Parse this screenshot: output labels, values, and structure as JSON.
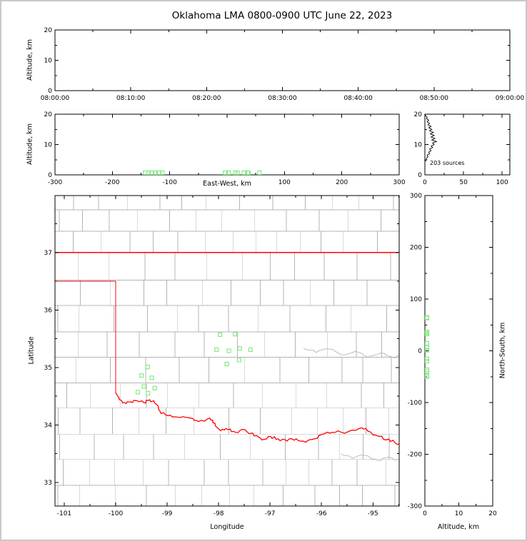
{
  "title": "Oklahoma LMA 0800-0900 UTC June 22, 2023",
  "labels": {
    "altitude_km": "Altitude, km",
    "east_west_km": "East-West, km",
    "latitude": "Latitude",
    "longitude": "Longitude",
    "north_south_km": "North-South, km"
  },
  "colors": {
    "frame": "#000000",
    "text": "#000000",
    "county_line": "#b4b4b4",
    "river_line": "#b4b4b4",
    "state_border": "#ff0000",
    "station_marker": "#7ce87c",
    "histogram_trace": "#000000",
    "figure_border": "#c9c9c9",
    "background": "#ffffff"
  },
  "network_center_lonlat": [
    -98.0,
    35.0
  ],
  "chart_data": [
    {
      "id": "time_height",
      "type": "scatter",
      "panel": "top",
      "ylabel": "Altitude, km",
      "ylim": [
        0,
        20
      ],
      "y_ticks": [
        0,
        10,
        20
      ],
      "y_tick_labels": [
        "0",
        "10",
        "20"
      ],
      "x_tick_labels": [
        "08:00:00",
        "08:10:00",
        "08:20:00",
        "08:30:00",
        "08:40:00",
        "08:50:00",
        "09:00:00"
      ],
      "points": []
    },
    {
      "id": "east_west_height",
      "type": "scatter",
      "panel": "middle-left",
      "xlabel": "East-West, km",
      "xlim": [
        -300,
        300
      ],
      "x_ticks": [
        -300,
        -200,
        -100,
        0,
        100,
        200,
        300
      ],
      "x_tick_labels": [
        "-300",
        "-200",
        "-100",
        "",
        "100",
        "200",
        "300"
      ],
      "ylabel": "Altitude, km",
      "ylim": [
        0,
        20
      ],
      "y_ticks": [
        0,
        10,
        20
      ],
      "y_tick_labels": [
        "0",
        "10",
        "20"
      ],
      "points": []
    },
    {
      "id": "altitude_histogram",
      "type": "line",
      "panel": "middle-right",
      "xlim": [
        0,
        110
      ],
      "x_ticks": [
        0,
        50,
        100
      ],
      "x_tick_labels": [
        "0",
        "50",
        "100"
      ],
      "ylim": [
        0,
        20
      ],
      "y_ticks": [
        0,
        10,
        20
      ],
      "y_tick_labels": [
        "0",
        "10",
        "20"
      ],
      "annotation": "203 sources",
      "total_sources": 203,
      "bins": {
        "altitude_km": [
          19.5,
          19,
          18.5,
          18,
          17.5,
          17,
          16.5,
          16,
          15.5,
          15,
          14.5,
          14,
          13.5,
          13,
          12.5,
          12,
          11.5,
          11,
          10.5,
          10,
          9.5,
          9,
          8.5,
          8,
          7.5,
          7,
          6.5,
          6,
          5.5,
          5,
          4.5
        ],
        "count": [
          1,
          3,
          2,
          5,
          3,
          6,
          4,
          8,
          5,
          9,
          6,
          11,
          7,
          12,
          8,
          13,
          9,
          15,
          10,
          12,
          8,
          10,
          6,
          8,
          5,
          6,
          3,
          4,
          2,
          2,
          0
        ]
      }
    },
    {
      "id": "plan_view_map",
      "type": "scatter",
      "panel": "main",
      "xlabel": "Longitude",
      "ylabel": "Latitude",
      "xlim": [
        -101.18,
        -94.49
      ],
      "ylim": [
        32.59,
        37.99
      ],
      "x_ticks": [
        -101,
        -100,
        -99,
        -98,
        -97,
        -96,
        -95
      ],
      "x_tick_labels": [
        "-101",
        "-100",
        "-99",
        "-98",
        "-97",
        "-96",
        "-95"
      ],
      "y_ticks": [
        33,
        34,
        35,
        36,
        37
      ],
      "y_tick_labels": [
        "33",
        "34",
        "35",
        "36",
        "37"
      ],
      "stations_lonlat": [
        [
          -99.38,
          35.01
        ],
        [
          -99.5,
          34.86
        ],
        [
          -99.3,
          34.82
        ],
        [
          -99.45,
          34.67
        ],
        [
          -99.57,
          34.57
        ],
        [
          -99.37,
          34.55
        ],
        [
          -99.24,
          34.64
        ],
        [
          -97.97,
          35.57
        ],
        [
          -97.68,
          35.58
        ],
        [
          -98.04,
          35.31
        ],
        [
          -97.8,
          35.29
        ],
        [
          -97.59,
          35.33
        ],
        [
          -97.38,
          35.31
        ],
        [
          -97.84,
          35.06
        ],
        [
          -97.6,
          35.13
        ]
      ],
      "oklahoma_border": {
        "north_latitude": 37.0,
        "panhandle_south_latitude": 36.5,
        "west_longitude": -100.0,
        "red_river_lonlat": [
          [
            -100.0,
            34.56
          ],
          [
            -99.93,
            34.44
          ],
          [
            -99.83,
            34.39
          ],
          [
            -99.71,
            34.4
          ],
          [
            -99.58,
            34.42
          ],
          [
            -99.46,
            34.39
          ],
          [
            -99.34,
            34.44
          ],
          [
            -99.21,
            34.36
          ],
          [
            -99.12,
            34.2
          ],
          [
            -98.94,
            34.17
          ],
          [
            -98.74,
            34.13
          ],
          [
            -98.55,
            34.12
          ],
          [
            -98.39,
            34.06
          ],
          [
            -98.17,
            34.12
          ],
          [
            -98.07,
            34.03
          ],
          [
            -97.96,
            33.9
          ],
          [
            -97.82,
            33.92
          ],
          [
            -97.67,
            33.87
          ],
          [
            -97.49,
            33.92
          ],
          [
            -97.31,
            33.81
          ],
          [
            -97.16,
            33.74
          ],
          [
            -96.99,
            33.8
          ],
          [
            -96.84,
            33.76
          ],
          [
            -96.67,
            33.72
          ],
          [
            -96.49,
            33.76
          ],
          [
            -96.31,
            33.7
          ],
          [
            -96.14,
            33.76
          ],
          [
            -95.94,
            33.85
          ],
          [
            -95.74,
            33.87
          ],
          [
            -95.49,
            33.88
          ],
          [
            -95.29,
            33.93
          ],
          [
            -95.14,
            33.94
          ],
          [
            -94.94,
            33.82
          ],
          [
            -94.74,
            33.74
          ],
          [
            -94.58,
            33.7
          ],
          [
            -94.45,
            33.64
          ]
        ]
      },
      "rivers_lonlat": [
        [
          [
            -96.35,
            35.33
          ],
          [
            -96.1,
            35.26
          ],
          [
            -95.85,
            35.32
          ],
          [
            -95.6,
            35.22
          ],
          [
            -95.35,
            35.28
          ],
          [
            -95.1,
            35.18
          ],
          [
            -94.85,
            35.25
          ],
          [
            -94.6,
            35.17
          ],
          [
            -94.45,
            35.21
          ]
        ],
        [
          [
            -95.62,
            33.5
          ],
          [
            -95.4,
            33.42
          ],
          [
            -95.15,
            33.47
          ],
          [
            -94.9,
            33.38
          ],
          [
            -94.7,
            33.44
          ],
          [
            -94.45,
            33.36
          ]
        ]
      ]
    },
    {
      "id": "north_south_height",
      "type": "scatter",
      "panel": "right",
      "xlabel": "Altitude, km",
      "xlim": [
        0,
        20
      ],
      "x_ticks": [
        0,
        10,
        20
      ],
      "x_tick_labels": [
        "0",
        "10",
        "20"
      ],
      "ylabel": "North-South, km",
      "ylim": [
        -300,
        300
      ],
      "y_ticks": [
        -300,
        -200,
        -100,
        0,
        100,
        200,
        300
      ],
      "y_tick_labels": [
        "-300",
        "-200",
        "-100",
        "0",
        "100",
        "200",
        "300"
      ],
      "points": []
    }
  ]
}
